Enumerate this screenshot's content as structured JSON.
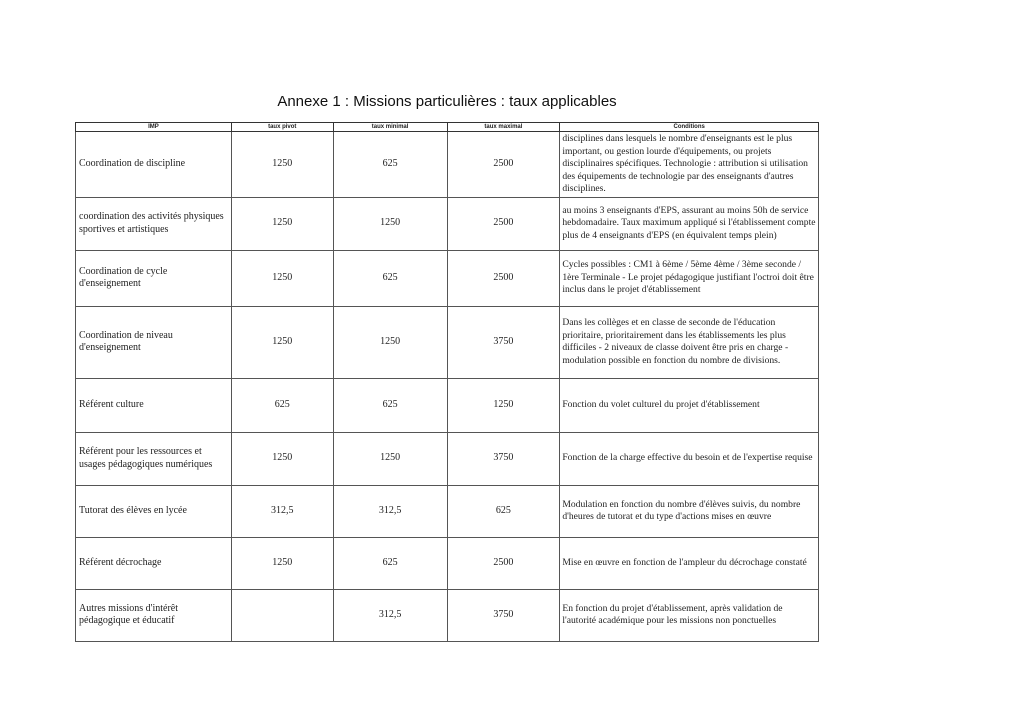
{
  "title": "Annexe 1 : Missions particulières : taux applicables",
  "headers": [
    "IMP",
    "taux pivot",
    "taux minimal",
    "taux maximal",
    "Conditions"
  ],
  "rows": [
    {
      "imp": "Coordination de discipline",
      "pivot": "1250",
      "min": "625",
      "max": "2500",
      "conditions": "disciplines dans lesquels le nombre d'enseignants est le plus important, ou gestion lourde d'équipements, ou projets disciplinaires spécifiques. Technologie : attribution si utilisation des équipements de technologie par des enseignants d'autres disciplines."
    },
    {
      "imp": "coordination des activités physiques sportives et artistiques",
      "pivot": "1250",
      "min": "1250",
      "max": "2500",
      "conditions": "au moins 3 enseignants d'EPS, assurant au moins  50h de service hebdomadaire. Taux maximum appliqué si l'établissement compte plus de 4 enseignants d'EPS (en équivalent temps plein)"
    },
    {
      "imp": "Coordination de cycle d'enseignement",
      "pivot": "1250",
      "min": "625",
      "max": "2500",
      "conditions": "Cycles possibles : CM1 à 6ème / 5ème 4ème / 3ème seconde / 1ère Terminale - Le projet pédagogique justifiant l'octroi doit être inclus dans le projet d'établissement"
    },
    {
      "imp": "Coordination de niveau d'enseignement",
      "pivot": "1250",
      "min": "1250",
      "max": "3750",
      "conditions": "Dans les collèges et en classe de seconde de l'éducation prioritaire, prioritairement dans les établissements les plus difficiles - 2 niveaux de classe doivent être pris en charge - modulation possible en fonction du nombre de divisions."
    },
    {
      "imp": "Référent culture",
      "pivot": "625",
      "min": "625",
      "max": "1250",
      "conditions": "Fonction du volet culturel du projet d'établissement"
    },
    {
      "imp": "Référent pour les ressources et usages pédagogiques numériques",
      "pivot": "1250",
      "min": "1250",
      "max": "3750",
      "conditions": "Fonction de la charge effective du besoin et de l'expertise requise"
    },
    {
      "imp": "Tutorat des élèves en lycée",
      "pivot": "312,5",
      "min": "312,5",
      "max": "625",
      "conditions": "Modulation en fonction du nombre d'élèves suivis, du nombre d'heures de tutorat et du type d'actions mises en œuvre"
    },
    {
      "imp": "Référent décrochage",
      "pivot": "1250",
      "min": "625",
      "max": "2500",
      "conditions": "Mise en œuvre en fonction de l'ampleur du décrochage constaté"
    },
    {
      "imp": "Autres missions d'intérêt pédagogique et éducatif",
      "pivot": "",
      "min": "312,5",
      "max": "3750",
      "conditions": "En fonction du projet d'établissement, après validation de l'autorité académique pour les missions non ponctuelles"
    }
  ]
}
